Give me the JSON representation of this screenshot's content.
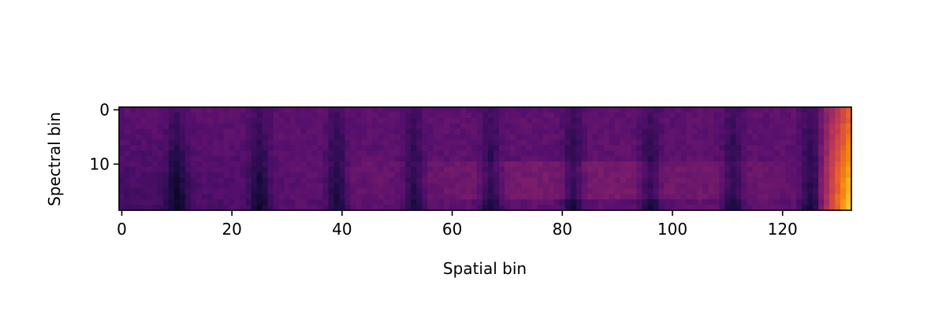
{
  "chart_data": {
    "type": "heatmap",
    "colormap": "inferno",
    "xlabel": "Spatial bin",
    "ylabel": "Spectral bin",
    "x_range": [
      0,
      132
    ],
    "y_range": [
      0,
      18
    ],
    "y_axis_inverted": true,
    "grid": false,
    "x_ticks": [
      0,
      20,
      40,
      60,
      80,
      100,
      120
    ],
    "y_ticks": [
      0,
      10
    ],
    "approx_value_range": [
      0.0,
      1.0
    ],
    "dark_columns": [
      10,
      25,
      39,
      53,
      67,
      82,
      96,
      111,
      125
    ],
    "bright_edge_columns": [
      129,
      130,
      131,
      132
    ],
    "dominant_region": "x=129-132 (max at y=18)"
  }
}
